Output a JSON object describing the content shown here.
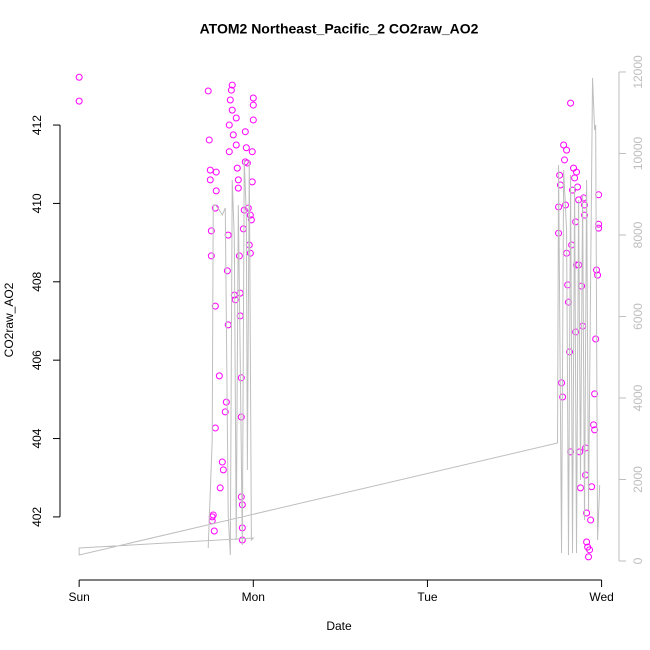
{
  "chart_data": {
    "type": "scatter",
    "title": "ATOM2 Northeast_Pacific_2 CO2raw_AO2",
    "x_label": "Date",
    "y_label": "CO2raw_AO2",
    "xlim": [
      -0.11,
      3.1
    ],
    "ylim": [
      400.39,
      413.66
    ],
    "y2lim": [
      -466,
      12294
    ],
    "xticks": [
      {
        "value": 0,
        "label": "Sun"
      },
      {
        "value": 1,
        "label": "Mon"
      },
      {
        "value": 2,
        "label": "Tue"
      },
      {
        "value": 3,
        "label": "Wed"
      }
    ],
    "yticks": [
      402,
      404,
      406,
      408,
      410,
      412
    ],
    "y2ticks": [
      0,
      2000,
      4000,
      6000,
      8000,
      10000,
      12000
    ],
    "y2_color": "#bebebe",
    "series": [
      {
        "color": "#ff00ff",
        "x": [
          0,
          0,
          0.741,
          0.747,
          0.753,
          0.753,
          0.759,
          0.759,
          0.764,
          0.764,
          0.77,
          0.776,
          0.782,
          0.782,
          0.787,
          0.787,
          0.782,
          0.805,
          0.81,
          0.822,
          0.828,
          0.839,
          0.845,
          0.851,
          0.856,
          0.856,
          0.862,
          0.862,
          0.868,
          0.874,
          0.879,
          0.879,
          0.885,
          0.891,
          0.897,
          0.902,
          0.902,
          0.908,
          0.914,
          0.914,
          0.92,
          0.925,
          0.925,
          0.931,
          0.931,
          0.931,
          0.937,
          0.937,
          0.937,
          0.943,
          0.948,
          0.954,
          0.954,
          0.96,
          0.966,
          0.971,
          0.977,
          0.983,
          0.983,
          0.989,
          0.994,
          0.994,
          1.0,
          1.0,
          1.0,
          2.753,
          2.753,
          2.759,
          2.764,
          2.77,
          2.776,
          2.782,
          2.787,
          2.793,
          2.799,
          2.799,
          2.805,
          2.81,
          2.816,
          2.822,
          2.822,
          2.828,
          2.833,
          2.839,
          2.845,
          2.851,
          2.851,
          2.856,
          2.856,
          2.862,
          2.868,
          2.868,
          2.874,
          2.879,
          2.885,
          2.891,
          2.897,
          2.902,
          2.902,
          2.908,
          2.908,
          2.914,
          2.914,
          2.92,
          2.925,
          2.931,
          2.937,
          2.943,
          2.954,
          2.96,
          2.96,
          2.966,
          2.971,
          2.977,
          2.983,
          2.983,
          2.983
        ],
        "values": [
          413.22,
          412.61,
          412.87,
          411.62,
          410.85,
          410.6,
          409.3,
          408.66,
          402.0,
          401.9,
          402.05,
          401.64,
          407.38,
          409.88,
          410.8,
          410.32,
          404.27,
          405.6,
          402.74,
          403.4,
          403.2,
          404.68,
          404.93,
          408.28,
          409.19,
          406.9,
          412.0,
          411.32,
          412.64,
          412.89,
          413.02,
          412.38,
          411.75,
          407.66,
          407.54,
          411.49,
          412.18,
          410.9,
          410.6,
          410.39,
          408.66,
          407.71,
          407.13,
          405.55,
          404.55,
          402.51,
          402.31,
          401.41,
          401.72,
          409.35,
          409.83,
          411.06,
          411.83,
          411.42,
          411.03,
          409.88,
          408.94,
          408.73,
          409.7,
          409.58,
          410.55,
          411.32,
          412.13,
          412.51,
          412.69,
          409.91,
          409.24,
          410.72,
          410.47,
          405.42,
          405.06,
          411.49,
          411.11,
          409.96,
          408.73,
          411.36,
          407.92,
          407.48,
          406.21,
          412.56,
          403.66,
          408.94,
          410.34,
          410.9,
          410.65,
          406.72,
          409.53,
          408.43,
          410.8,
          410.42,
          410.09,
          408.43,
          403.66,
          402.74,
          407.89,
          406.87,
          410.14,
          409.96,
          409.7,
          403.76,
          403.07,
          402.1,
          401.36,
          401.23,
          400.98,
          401.16,
          401.92,
          402.77,
          404.35,
          404.22,
          405.14,
          406.54,
          408.3,
          408.17,
          409.37,
          409.47,
          410.22
        ]
      },
      {
        "color": "#bebebe",
        "axis": "y2",
        "line": true,
        "x": [
          0.741,
          0.764,
          0.77,
          0.782,
          0.805,
          0.822,
          0.839,
          0.856,
          0.868,
          0.879,
          0.891,
          0.902,
          0.914,
          0.925,
          0.937,
          0.948,
          0.96,
          0.966,
          0.977,
          0.989,
          1.0,
          0,
          0,
          2.747,
          2.753,
          2.77,
          2.782,
          2.799,
          2.81,
          2.822,
          2.833,
          2.845,
          2.856,
          2.868,
          2.879,
          2.891,
          2.902,
          2.914,
          2.925,
          2.937,
          2.948,
          2.96,
          2.966,
          2.977,
          2.989
        ],
        "values": [
          319,
          2969,
          8736,
          8736,
          8613,
          8491,
          8663,
          1129,
          147,
          9350,
          7926,
          515,
          8736,
          4933,
          393,
          9840,
          8491,
          2233,
          9840,
          515,
          564,
          319,
          147,
          2896,
          9718,
          196,
          9595,
          8123,
          147,
          9472,
          196,
          9227,
          196,
          8859,
          1988,
          8982,
          1006,
          9350,
          1252,
          6896,
          11853,
          10577,
          10699,
          515,
          1865
        ]
      }
    ]
  }
}
